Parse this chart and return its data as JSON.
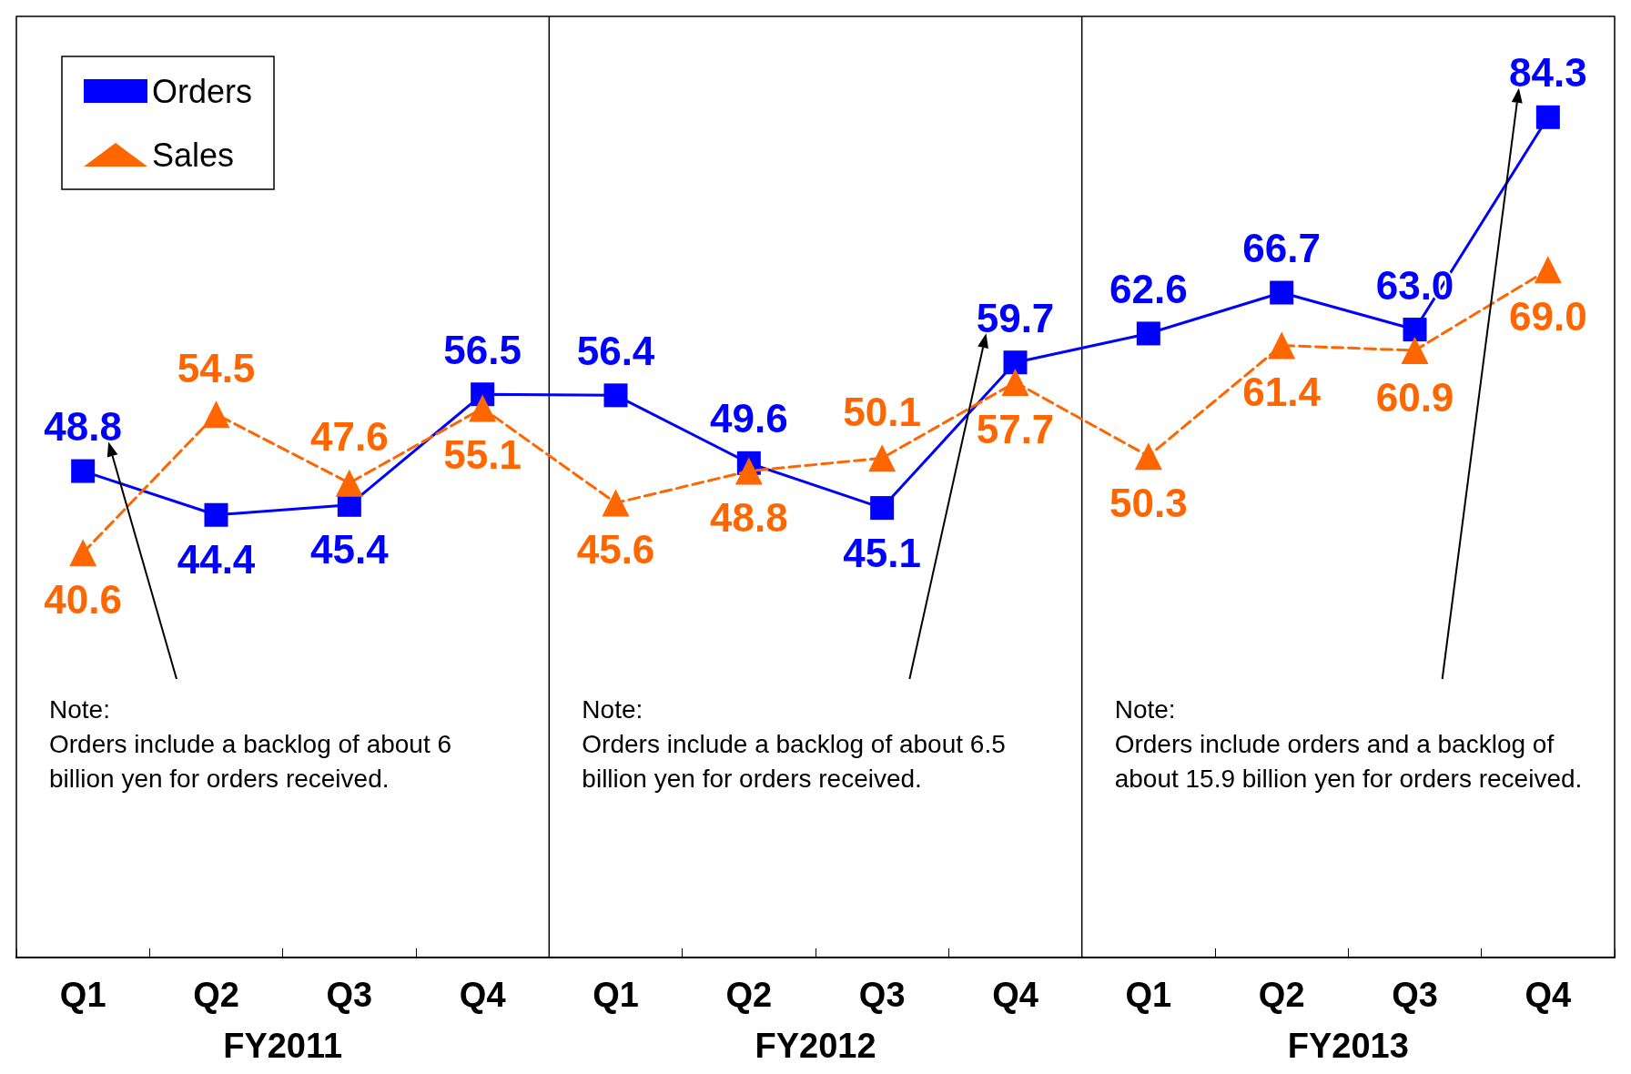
{
  "chart_data": {
    "type": "line",
    "categories": [
      "Q1",
      "Q2",
      "Q3",
      "Q4",
      "Q1",
      "Q2",
      "Q3",
      "Q4",
      "Q1",
      "Q2",
      "Q3",
      "Q4"
    ],
    "series": [
      {
        "name": "Orders",
        "color": "#0000ff",
        "marker": "square",
        "line_style": "solid",
        "values": [
          48.8,
          44.4,
          45.4,
          56.5,
          56.4,
          49.6,
          45.1,
          59.7,
          62.6,
          66.7,
          63.0,
          84.3
        ],
        "value_labels": [
          "48.8",
          "44.4",
          "45.4",
          "56.5",
          "56.4",
          "49.6",
          "45.1",
          "59.7",
          "62.6",
          "66.7",
          "63.0",
          "84.3"
        ]
      },
      {
        "name": "Sales",
        "color": "#ff6600",
        "marker": "triangle",
        "line_style": "dashed",
        "values": [
          40.6,
          54.5,
          47.6,
          55.1,
          45.6,
          48.8,
          50.1,
          57.7,
          50.3,
          61.4,
          60.9,
          69.0
        ],
        "value_labels": [
          "40.6",
          "54.5",
          "47.6",
          "55.1",
          "45.6",
          "48.8",
          "50.1",
          "57.7",
          "50.3",
          "61.4",
          "60.9",
          "69.0"
        ]
      }
    ],
    "legend": "top left",
    "grid": false,
    "annotations": [
      "FY2011",
      "FY2012",
      "FY2013",
      "Note:\nOrders include a backlog of about 6 billion yen for orders received.",
      "Note:\nOrders include a backlog of about 6.5 billion yen for orders received.",
      "Note:\nOrders include orders and a backlog of about 15.9 billion yen for orders received."
    ]
  }
}
